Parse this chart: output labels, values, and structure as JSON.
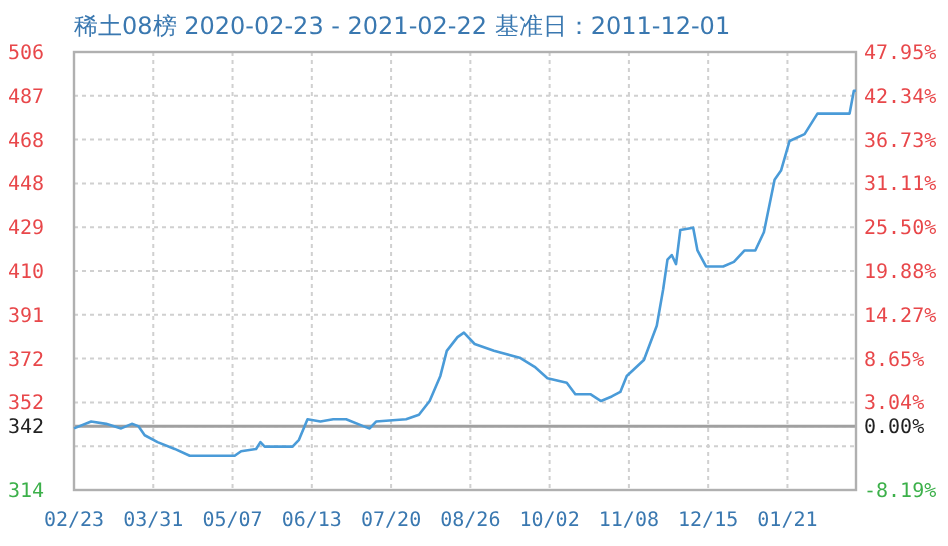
{
  "chart_data": {
    "type": "line",
    "title": "稀土08榜 2020-02-23 - 2021-02-22     基准日：2011-12-01",
    "x": [
      "2020-02-23",
      "2020-03-02",
      "2020-03-09",
      "2020-03-16",
      "2020-03-21",
      "2020-03-24",
      "2020-03-27",
      "2020-04-02",
      "2020-04-10",
      "2020-04-17",
      "2020-05-08",
      "2020-05-11",
      "2020-05-18",
      "2020-05-20",
      "2020-05-22",
      "2020-06-04",
      "2020-06-07",
      "2020-06-11",
      "2020-06-17",
      "2020-06-23",
      "2020-06-29",
      "2020-07-07",
      "2020-07-10",
      "2020-07-13",
      "2020-07-27",
      "2020-08-02",
      "2020-08-07",
      "2020-08-12",
      "2020-08-15",
      "2020-08-20",
      "2020-08-23",
      "2020-08-28",
      "2020-09-06",
      "2020-09-18",
      "2020-09-25",
      "2020-10-01",
      "2020-10-10",
      "2020-10-14",
      "2020-10-21",
      "2020-10-26",
      "2020-10-31",
      "2020-11-04",
      "2020-11-07",
      "2020-11-15",
      "2020-11-21",
      "2020-11-24",
      "2020-11-26",
      "2020-11-28",
      "2020-11-30",
      "2020-12-02",
      "2020-12-08",
      "2020-12-10",
      "2020-12-14",
      "2020-12-22",
      "2020-12-27",
      "2021-01-01",
      "2021-01-06",
      "2021-01-10",
      "2021-01-15",
      "2021-01-18",
      "2021-01-22",
      "2021-01-29",
      "2021-02-04",
      "2021-02-19",
      "2021-02-21",
      "2021-02-22"
    ],
    "series": [
      {
        "color": "#4a9bd8",
        "values": [
          341,
          344,
          343,
          341,
          343,
          342,
          338,
          335,
          332,
          329,
          329,
          331,
          332,
          335,
          333,
          333,
          336,
          345,
          344,
          345,
          345,
          342,
          341,
          344,
          345,
          347,
          353,
          364,
          375,
          381,
          383,
          378,
          375,
          372,
          368,
          363,
          361,
          356,
          356,
          353,
          355,
          357,
          364,
          371,
          386,
          402,
          415,
          417,
          413,
          428,
          429,
          419,
          412,
          412,
          414,
          419,
          419,
          427,
          450,
          454,
          467,
          470,
          479,
          479,
          489,
          489
        ]
      }
    ],
    "xlim": [
      "2020-02-23",
      "2021-02-22"
    ],
    "xticks": [
      {
        "value": "2020-02-23",
        "label": "02/23"
      },
      {
        "value": "2020-03-31",
        "label": "03/31"
      },
      {
        "value": "2020-05-07",
        "label": "05/07"
      },
      {
        "value": "2020-06-13",
        "label": "06/13"
      },
      {
        "value": "2020-07-20",
        "label": "07/20"
      },
      {
        "value": "2020-08-26",
        "label": "08/26"
      },
      {
        "value": "2020-10-02",
        "label": "10/02"
      },
      {
        "value": "2020-11-08",
        "label": "11/08"
      },
      {
        "value": "2020-12-15",
        "label": "12/15"
      },
      {
        "value": "2021-01-21",
        "label": "01/21"
      }
    ],
    "ylim": [
      314,
      506
    ],
    "yticks": [
      314,
      {
        "value": 333.2,
        "label": null
      },
      342,
      {
        "value": 352.4,
        "label": "352"
      },
      {
        "value": 371.6,
        "label": "372"
      },
      {
        "value": 390.8,
        "label": "391"
      },
      410,
      {
        "value": 429.2,
        "label": "429"
      },
      {
        "value": 448.4,
        "label": "448"
      },
      {
        "value": 467.6,
        "label": "468"
      },
      {
        "value": 486.8,
        "label": "487"
      },
      506
    ],
    "y2lim": [
      -8.19,
      47.95
    ],
    "y2ticks": [
      {
        "value": -8.19,
        "label": "-8.19%"
      },
      {
        "value": 0,
        "label": "0.00%"
      },
      {
        "value": 3.04,
        "label": "3.04%"
      },
      {
        "value": 8.65,
        "label": "8.65%"
      },
      {
        "value": 14.27,
        "label": "14.27%"
      },
      {
        "value": 19.88,
        "label": "19.88%"
      },
      {
        "value": 25.5,
        "label": "25.50%"
      },
      {
        "value": 31.11,
        "label": "31.11%"
      },
      {
        "value": 36.73,
        "label": "36.73%"
      },
      {
        "value": 42.34,
        "label": "42.34%"
      },
      {
        "value": 47.95,
        "label": "47.95%"
      }
    ],
    "ref_lines": [
      {
        "axis": "y",
        "value": 342,
        "color": "#a0a0a0"
      }
    ],
    "grid": true,
    "marker": "none",
    "line_style": "solid"
  }
}
